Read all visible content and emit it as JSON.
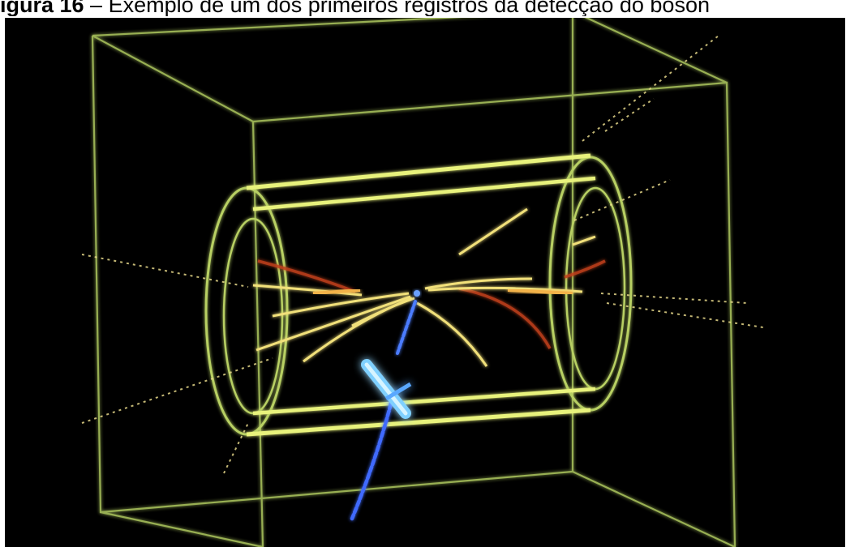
{
  "caption": {
    "label": "igura 16",
    "separator": " – ",
    "text": "Exemplo de um dos primeiros registros da detecção do bóson"
  },
  "image": {
    "subject": "particle-collision-event-display",
    "colors": {
      "background": "#000000",
      "frame": "#b9d26a",
      "cylinder": "#e3f07a",
      "track_yellow": "#f2e27a",
      "track_red": "#c8401c",
      "track_blue": "#4a78ff",
      "tower_blue": "#8fd8ff"
    }
  }
}
